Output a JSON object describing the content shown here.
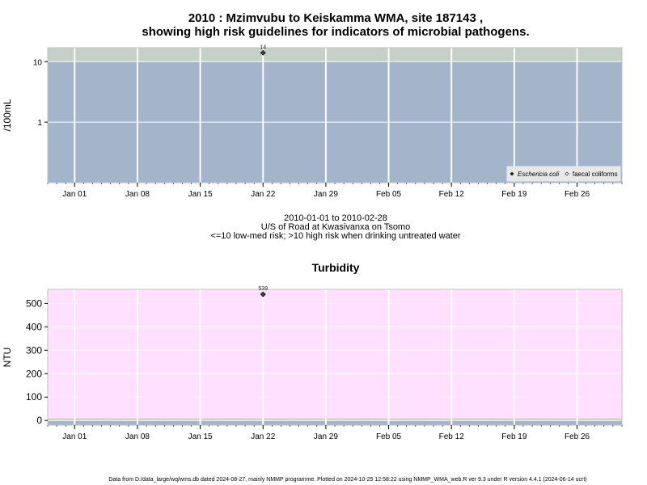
{
  "chart_data": [
    {
      "type": "scatter",
      "title_line1": "2010 : Mzimvubu to Keiskamma WMA, site 187143 ,",
      "title_line2": "showing high risk guidelines for indicators of microbial pathogens.",
      "ylabel": "/100mL",
      "yscale": "log",
      "ylim": [
        0.1,
        17
      ],
      "y_ticks": [
        {
          "value": 1,
          "label": "1"
        },
        {
          "value": 10,
          "label": "10"
        }
      ],
      "x_ticks": [
        {
          "date": "2010-01-01",
          "label": "Jan 01"
        },
        {
          "date": "2010-01-08",
          "label": "Jan 08"
        },
        {
          "date": "2010-01-15",
          "label": "Jan 15"
        },
        {
          "date": "2010-01-22",
          "label": "Jan 22"
        },
        {
          "date": "2010-01-29",
          "label": "Jan 29"
        },
        {
          "date": "2010-02-05",
          "label": "Feb 05"
        },
        {
          "date": "2010-02-12",
          "label": "Feb 12"
        },
        {
          "date": "2010-02-19",
          "label": "Feb 19"
        },
        {
          "date": "2010-02-26",
          "label": "Feb 26"
        }
      ],
      "xlim": [
        "2009-12-29",
        "2010-03-03"
      ],
      "bands": [
        {
          "from": 0.1,
          "to": 10,
          "color": "#a3b4cb"
        },
        {
          "from": 10,
          "to": 17,
          "color": "#c5d1c5"
        }
      ],
      "series": [
        {
          "name": "Eschericia coli",
          "marker": "filled-diamond",
          "points": [
            {
              "x": "2010-01-22",
              "y": 14,
              "label": "14"
            }
          ]
        },
        {
          "name": "faecal coliforms",
          "marker": "open-diamond",
          "points": []
        }
      ],
      "legend_position": "bottom-right",
      "grid": true,
      "subtitle": [
        "2010-01-01 to 2010-02-28",
        "U/S of Road at Kwasivanxa on Tsomo",
        "<=10 low-med risk; >10 high risk when drinking untreated water"
      ]
    },
    {
      "type": "scatter",
      "title": "Turbidity",
      "ylabel": "NTU",
      "yscale": "linear",
      "ylim": [
        -20,
        560
      ],
      "y_ticks": [
        {
          "value": 0,
          "label": "0"
        },
        {
          "value": 100,
          "label": "100"
        },
        {
          "value": 200,
          "label": "200"
        },
        {
          "value": 300,
          "label": "300"
        },
        {
          "value": 400,
          "label": "400"
        },
        {
          "value": 500,
          "label": "500"
        }
      ],
      "x_ticks": [
        {
          "date": "2010-01-01",
          "label": "Jan 01"
        },
        {
          "date": "2010-01-08",
          "label": "Jan 08"
        },
        {
          "date": "2010-01-15",
          "label": "Jan 15"
        },
        {
          "date": "2010-01-22",
          "label": "Jan 22"
        },
        {
          "date": "2010-01-29",
          "label": "Jan 29"
        },
        {
          "date": "2010-02-05",
          "label": "Feb 05"
        },
        {
          "date": "2010-02-12",
          "label": "Feb 12"
        },
        {
          "date": "2010-02-19",
          "label": "Feb 19"
        },
        {
          "date": "2010-02-26",
          "label": "Feb 26"
        }
      ],
      "xlim": [
        "2009-12-29",
        "2010-03-03"
      ],
      "bands": [
        {
          "from": -20,
          "to": 0,
          "color": "#a3b4cb"
        },
        {
          "from": 0,
          "to": 10,
          "color": "#c5d1c5"
        },
        {
          "from": 10,
          "to": 560,
          "color": "#ffe0ff"
        }
      ],
      "series": [
        {
          "marker": "filled-diamond",
          "points": [
            {
              "x": "2010-01-22",
              "y": 539,
              "label": "539"
            }
          ]
        }
      ],
      "grid": true
    }
  ],
  "footer": "Data from D:/data_large/wq/wms.db dated 2024-08-27, mainly NMMP programme. Plotted on 2024-10-25 12:58:22 using NMMP_WMA_web.R ver 9.3 under R version 4.4.1 (2024-06-14 ucrt)"
}
